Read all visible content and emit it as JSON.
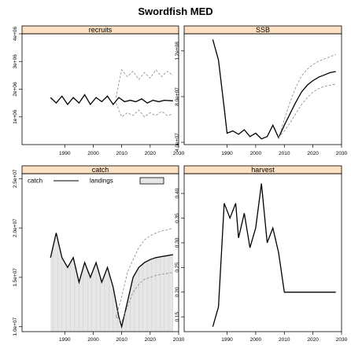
{
  "title": "Swordfish MED",
  "colors": {
    "strip_fill": "#fde0c2",
    "catch_fill": "#e6e6e6",
    "line": "#000000",
    "bound": "#888888",
    "frame": "#000000"
  },
  "chart_data": [
    {
      "type": "line",
      "strip": "recruits",
      "xlim": [
        1975,
        2030
      ],
      "ylim": [
        0,
        4000000
      ],
      "x_ticks": [
        1990,
        2000,
        2010,
        2020,
        2030
      ],
      "y_ticks": [
        1000000,
        2000000,
        3000000,
        4000000
      ],
      "y_tick_labels": [
        "1e+06",
        "2e+06",
        "3e+06",
        "4e+06"
      ],
      "series": [
        {
          "role": "main",
          "x": [
            1985,
            1987,
            1989,
            1991,
            1993,
            1995,
            1997,
            1999,
            2001,
            2003,
            2005,
            2007,
            2009,
            2011,
            2013,
            2015,
            2017,
            2019,
            2021,
            2023,
            2025,
            2028
          ],
          "y": [
            1700000,
            1500000,
            1750000,
            1450000,
            1700000,
            1500000,
            1800000,
            1450000,
            1700000,
            1550000,
            1750000,
            1450000,
            1700000,
            1550000,
            1600000,
            1550000,
            1650000,
            1500000,
            1600000,
            1550000,
            1600000,
            1580000
          ]
        },
        {
          "role": "upper",
          "x": [
            2008,
            2010,
            2012,
            2014,
            2016,
            2018,
            2020,
            2022,
            2024,
            2026,
            2028
          ],
          "y": [
            1700000,
            2700000,
            2450000,
            2650000,
            2350000,
            2600000,
            2400000,
            2700000,
            2450000,
            2650000,
            2500000
          ]
        },
        {
          "role": "lower",
          "x": [
            2008,
            2010,
            2012,
            2014,
            2016,
            2018,
            2020,
            2022,
            2024,
            2026,
            2028
          ],
          "y": [
            1500000,
            1000000,
            1150000,
            1050000,
            1250000,
            1000000,
            1150000,
            1050000,
            1200000,
            1050000,
            1100000
          ]
        }
      ]
    },
    {
      "type": "line",
      "strip": "SSB",
      "xlim": [
        1975,
        2030
      ],
      "ylim": [
        38000000,
        135000000
      ],
      "x_ticks": [
        1990,
        2000,
        2010,
        2020,
        2030
      ],
      "y_ticks": [
        40000000,
        80000000,
        120000000
      ],
      "y_tick_labels": [
        "4.0e+07",
        "8.0e+07",
        "1.2e+08"
      ],
      "series": [
        {
          "role": "main",
          "x": [
            1985,
            1987,
            1989,
            1990,
            1992,
            1994,
            1996,
            1998,
            2000,
            2002,
            2004,
            2006,
            2008,
            2010,
            2012,
            2014,
            2016,
            2018,
            2020,
            2022,
            2024,
            2026,
            2028
          ],
          "y": [
            130000000,
            112000000,
            70000000,
            48000000,
            50000000,
            47000000,
            51000000,
            45000000,
            48000000,
            43000000,
            45000000,
            55000000,
            44000000,
            55000000,
            65000000,
            75000000,
            84000000,
            90000000,
            94000000,
            97000000,
            99000000,
            101000000,
            102000000
          ]
        },
        {
          "role": "upper",
          "x": [
            2008,
            2010,
            2012,
            2014,
            2016,
            2018,
            2020,
            2022,
            2024,
            2026,
            2028
          ],
          "y": [
            44000000,
            60000000,
            75000000,
            88000000,
            98000000,
            104000000,
            108000000,
            111000000,
            113000000,
            115000000,
            117000000
          ]
        },
        {
          "role": "lower",
          "x": [
            2008,
            2010,
            2012,
            2014,
            2016,
            2018,
            2020,
            2022,
            2024,
            2026,
            2028
          ],
          "y": [
            44000000,
            50000000,
            57000000,
            65000000,
            73000000,
            79000000,
            84000000,
            87000000,
            89000000,
            90000000,
            91000000
          ]
        }
      ]
    },
    {
      "type": "line",
      "strip": "catch",
      "xlim": [
        1975,
        2030
      ],
      "ylim": [
        9500000,
        25500000
      ],
      "x_ticks": [
        1990,
        2000,
        2010,
        2020,
        2030
      ],
      "y_ticks": [
        10000000,
        15000000,
        20000000,
        25000000
      ],
      "y_tick_labels": [
        "1.0e+07",
        "1.5e+07",
        "2.0e+07",
        "2.5e+07"
      ],
      "legend": {
        "items": [
          "catch",
          "landings"
        ],
        "placement": "top"
      },
      "series": [
        {
          "role": "main",
          "name": "catch",
          "x": [
            1985,
            1987,
            1989,
            1991,
            1993,
            1995,
            1997,
            1999,
            2001,
            2003,
            2005,
            2007,
            2009,
            2010,
            2012,
            2014,
            2016,
            2018,
            2020,
            2022,
            2024,
            2026,
            2028
          ],
          "y": [
            17000000,
            19500000,
            17000000,
            16000000,
            17000000,
            14500000,
            16500000,
            15000000,
            16500000,
            14500000,
            16000000,
            14000000,
            11000000,
            10000000,
            12500000,
            15000000,
            16000000,
            16500000,
            16800000,
            17000000,
            17100000,
            17200000,
            17300000
          ]
        },
        {
          "role": "upper",
          "x": [
            2008,
            2010,
            2012,
            2014,
            2016,
            2018,
            2020,
            2022,
            2024,
            2026,
            2028
          ],
          "y": [
            11000000,
            13000000,
            15500000,
            16800000,
            18000000,
            18800000,
            19200000,
            19500000,
            19700000,
            19800000,
            20000000
          ]
        },
        {
          "role": "lower",
          "x": [
            2008,
            2010,
            2012,
            2014,
            2016,
            2018,
            2020,
            2022,
            2024,
            2026,
            2028
          ],
          "y": [
            11000000,
            10500000,
            12000000,
            13500000,
            14300000,
            14800000,
            15000000,
            15200000,
            15300000,
            15400000,
            15500000
          ]
        }
      ]
    },
    {
      "type": "line",
      "strip": "harvest",
      "xlim": [
        1975,
        2030
      ],
      "ylim": [
        0.12,
        0.44
      ],
      "x_ticks": [
        1990,
        2000,
        2010,
        2020,
        2030
      ],
      "y_ticks": [
        0.15,
        0.2,
        0.25,
        0.3,
        0.35,
        0.4
      ],
      "y_tick_labels": [
        "0.15",
        "0.20",
        "0.25",
        "0.30",
        "0.35",
        "0.40"
      ],
      "series": [
        {
          "role": "main",
          "x": [
            1985,
            1987,
            1989,
            1991,
            1993,
            1994,
            1996,
            1998,
            2000,
            2002,
            2004,
            2006,
            2008,
            2010,
            2012,
            2015,
            2020,
            2025,
            2028
          ],
          "y": [
            0.13,
            0.17,
            0.38,
            0.35,
            0.38,
            0.31,
            0.36,
            0.29,
            0.33,
            0.42,
            0.3,
            0.33,
            0.28,
            0.2,
            0.2,
            0.2,
            0.2,
            0.2,
            0.2
          ]
        }
      ]
    }
  ]
}
